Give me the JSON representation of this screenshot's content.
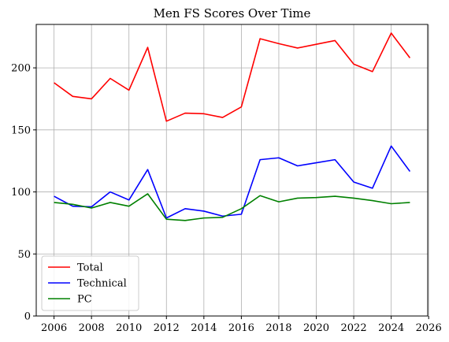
{
  "chart_data": {
    "type": "line",
    "title": "Men FS Scores Over Time",
    "xlabel": "",
    "ylabel": "",
    "xlim": [
      2005.05,
      2025.95
    ],
    "ylim": [
      0,
      235
    ],
    "xticks": [
      2006,
      2008,
      2010,
      2012,
      2014,
      2016,
      2018,
      2020,
      2022,
      2024,
      2026
    ],
    "yticks": [
      0,
      50,
      100,
      150,
      200
    ],
    "grid": true,
    "legend_position": "lower-left",
    "x": [
      2006,
      2007,
      2008,
      2009,
      2010,
      2011,
      2012,
      2013,
      2014,
      2015,
      2016,
      2017,
      2018,
      2019,
      2020,
      2021,
      2022,
      2023,
      2024,
      2025
    ],
    "series": [
      {
        "name": "Total",
        "color": "#ff0000",
        "values": [
          188,
          177,
          175,
          191.5,
          182,
          216.5,
          157,
          163.5,
          163,
          160,
          168.5,
          223.5,
          219.5,
          216,
          219,
          222,
          203,
          197,
          228,
          208
        ]
      },
      {
        "name": "Technical",
        "color": "#0000ff",
        "values": [
          96.5,
          88.5,
          88,
          100,
          93.5,
          118,
          79,
          86.5,
          84.5,
          80.5,
          82,
          126,
          127.5,
          121,
          123.5,
          126,
          108,
          103,
          137,
          116.5
        ]
      },
      {
        "name": "PC",
        "color": "#008000",
        "values": [
          91.5,
          90,
          87,
          91.5,
          88.5,
          98.5,
          78,
          77,
          79,
          79.5,
          86.5,
          97,
          92,
          95,
          95.5,
          96.5,
          95,
          93,
          90.5,
          91.5
        ]
      }
    ]
  }
}
